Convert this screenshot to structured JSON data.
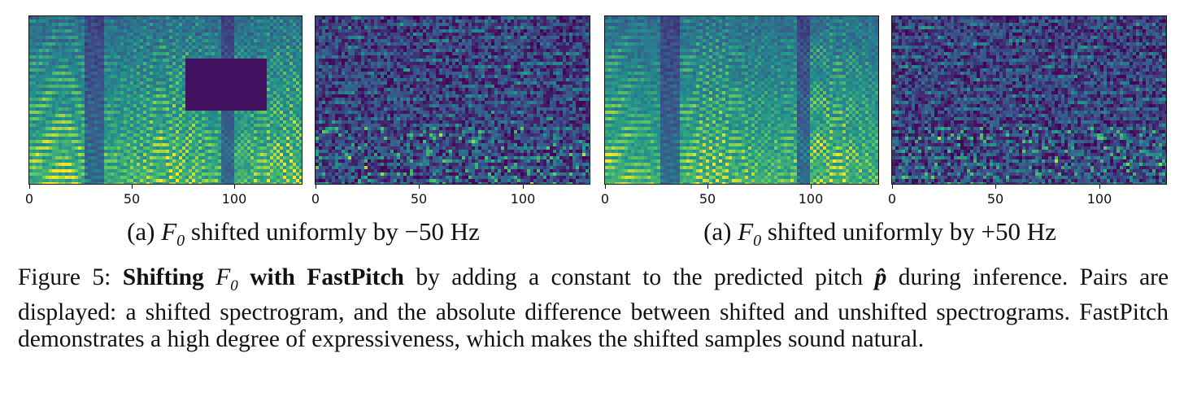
{
  "figure": {
    "panels": [
      {
        "id": "p1",
        "kind": "spectrogram",
        "shift": "-50 Hz"
      },
      {
        "id": "p2",
        "kind": "difference",
        "shift": "-50 Hz"
      },
      {
        "id": "p3",
        "kind": "spectrogram",
        "shift": "+50 Hz"
      },
      {
        "id": "p4",
        "kind": "difference",
        "shift": "+50 Hz"
      }
    ],
    "x_ticks": [
      "0",
      "50",
      "100"
    ],
    "colormap": [
      "#440154",
      "#3b528b",
      "#21918c",
      "#5ec962",
      "#fde725"
    ],
    "subcaptions": {
      "left": {
        "prefix": "(a)",
        "var": "F",
        "sub": "0",
        "text": "shifted uniformly by",
        "value": "−50",
        "unit": "Hz"
      },
      "right": {
        "prefix": "(a)",
        "var": "F",
        "sub": "0",
        "text": "shifted uniformly by",
        "value": "+50",
        "unit": "Hz"
      }
    },
    "caption": {
      "label": "Figure 5:",
      "bold1": "Shifting",
      "var": "F",
      "sub": "0",
      "bold2": "with FastPitch",
      "text1": "by adding a constant to the predicted pitch",
      "pitch_symbol": "p̂",
      "text2": "during inference. Pairs are displayed: a shifted spectrogram, and the absolute difference between shifted and unshifted spectrograms.  FastPitch demonstrates a high degree of expressiveness, which makes the shifted samples sound natural."
    }
  }
}
